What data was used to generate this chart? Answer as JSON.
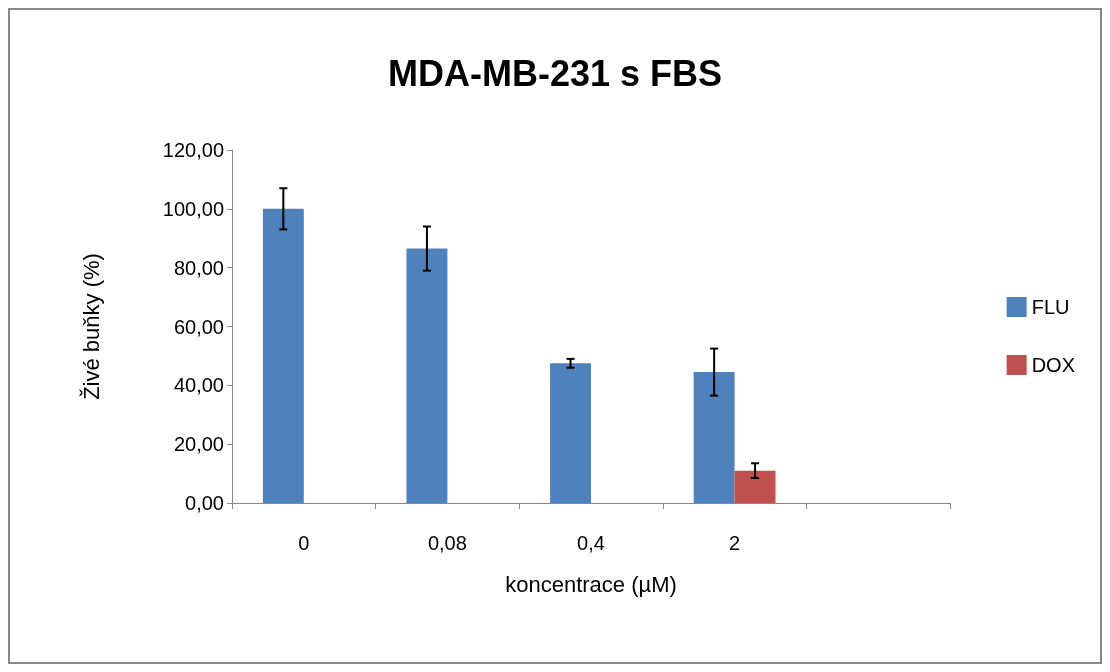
{
  "chart_data": {
    "type": "bar",
    "title": "MDA-MB-231 s FBS",
    "xlabel": "koncentrace (µM)",
    "ylabel": "Živé buňky (%)",
    "categories": [
      "0",
      "0,08",
      "0,4",
      "2",
      null
    ],
    "series": [
      {
        "name": "FLU",
        "color": "#4f81bd",
        "values": [
          100,
          86.5,
          47.5,
          44.5,
          null
        ],
        "errors": [
          7,
          7.5,
          1.5,
          8,
          null
        ]
      },
      {
        "name": "DOX",
        "color": "#c0504d",
        "values": [
          null,
          null,
          null,
          11,
          null
        ],
        "errors": [
          null,
          null,
          null,
          2.5,
          null
        ]
      }
    ],
    "ylim": [
      0,
      120
    ],
    "yticks": [
      {
        "value": 0,
        "label": "0,00"
      },
      {
        "value": 20,
        "label": "20,00"
      },
      {
        "value": 40,
        "label": "40,00"
      },
      {
        "value": 60,
        "label": "60,00"
      },
      {
        "value": 80,
        "label": "80,00"
      },
      {
        "value": 100,
        "label": "100,00"
      },
      {
        "value": 120,
        "label": "120,00"
      }
    ],
    "grid": false,
    "legend": "right"
  }
}
